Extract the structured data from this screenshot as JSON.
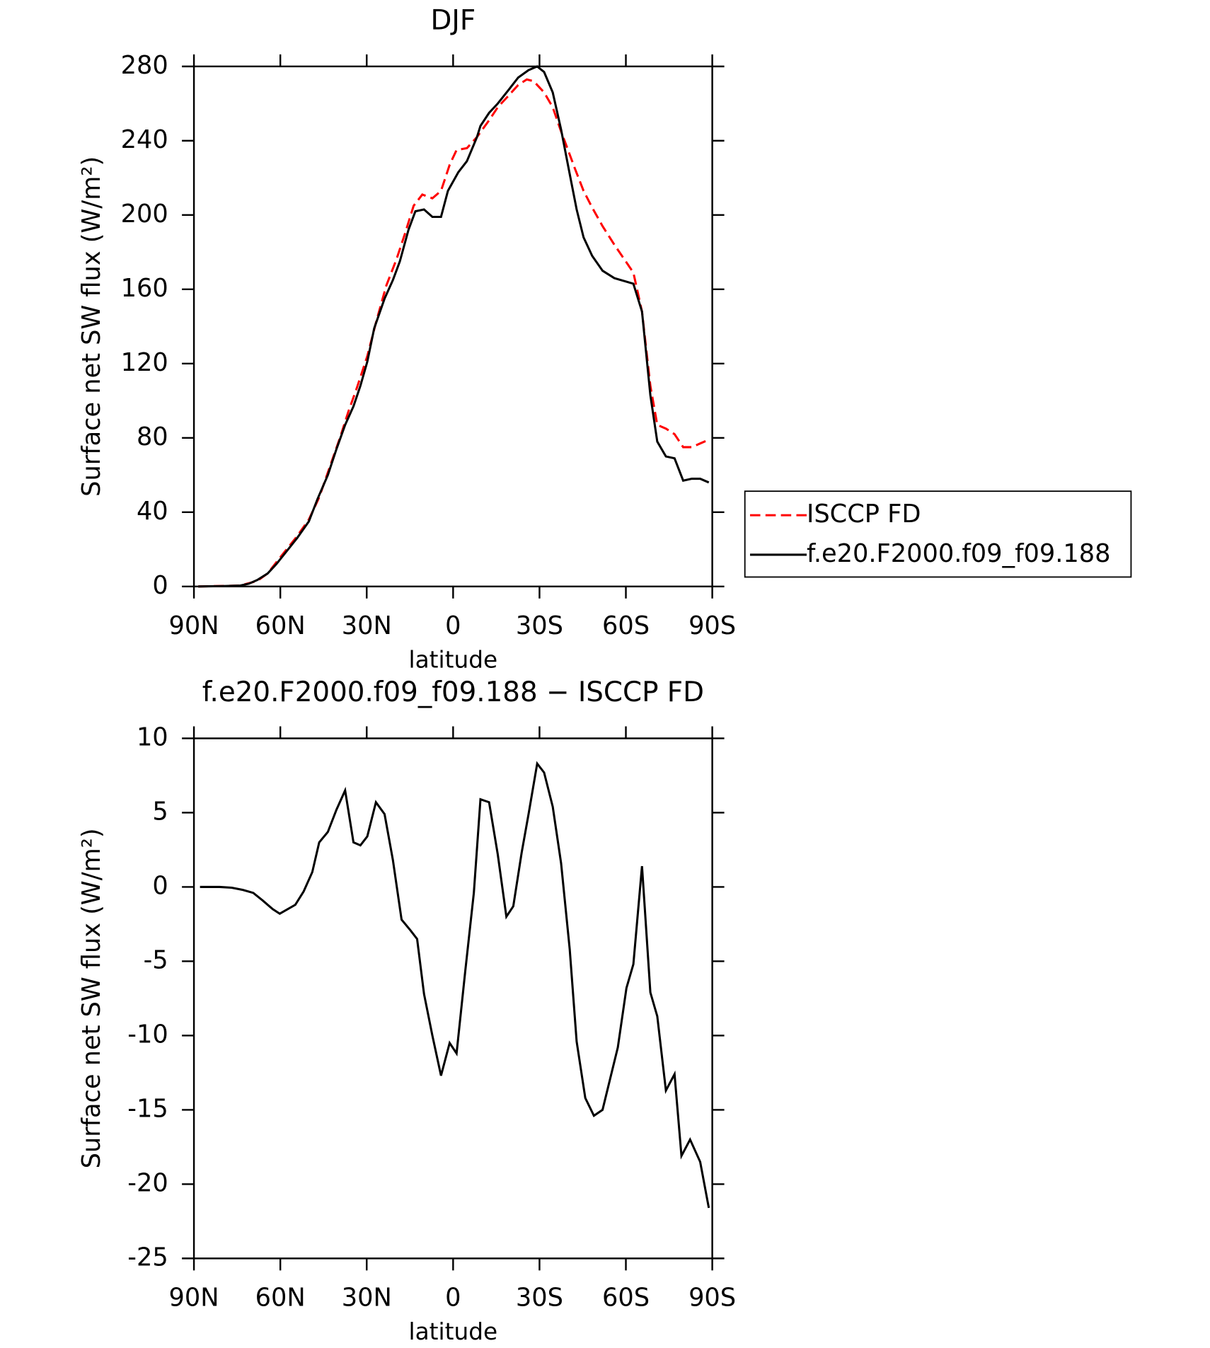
{
  "chart_data": [
    {
      "type": "line",
      "title": "DJF",
      "xlabel": "latitude",
      "ylabel": "Surface net SW flux (W/m²)",
      "xlim": [
        90,
        -90
      ],
      "xticks": [
        {
          "value": 90,
          "label": "90N"
        },
        {
          "value": 60,
          "label": "60N"
        },
        {
          "value": 30,
          "label": "30N"
        },
        0,
        {
          "value": -30,
          "label": "30S"
        },
        {
          "value": -60,
          "label": "60S"
        },
        {
          "value": -90,
          "label": "90S"
        }
      ],
      "ylim": [
        0,
        280
      ],
      "yticks": [
        0,
        40,
        80,
        120,
        160,
        200,
        240,
        280
      ],
      "legend": "right",
      "series": [
        {
          "name": "ISCCP FD",
          "color": "#ff0000",
          "linestyle": "dashed",
          "x": [
            88.5,
            73.9,
            68.0,
            64.4,
            61.4,
            57.8,
            54.2,
            50.1,
            46.5,
            42.9,
            39.3,
            36.4,
            33.4,
            29.8,
            26.8,
            23.2,
            19.7,
            16.7,
            13.7,
            10.7,
            7.2,
            4.2,
            1.2,
            -1.2,
            -4.8,
            -8.3,
            -12.5,
            -15.5,
            -19.1,
            -22.6,
            -25.6,
            -28.0,
            -31.6,
            -34.6,
            -37.5,
            -42.3,
            -45.3,
            -48.3,
            -51.9,
            -56.0,
            -62.6,
            -65.6,
            -68.5,
            -70.9,
            -73.9,
            -76.9,
            -79.9,
            -82.9,
            -85.8,
            -88.8
          ],
          "values": [
            0,
            0.5,
            3,
            7,
            13,
            20,
            27,
            36,
            48,
            64,
            80,
            94,
            107,
            124,
            142,
            162,
            176,
            190,
            205,
            211,
            209,
            213,
            227,
            235,
            236,
            242,
            251,
            258,
            264,
            270,
            273,
            272,
            266,
            258,
            245,
            225,
            213,
            204,
            194,
            184,
            169,
            148,
            108,
            87,
            85,
            82,
            75,
            75,
            77,
            79
          ]
        },
        {
          "name": "f.e20.F2000.f09_f09.188",
          "color": "#000000",
          "linestyle": "solid",
          "x": [
            88.5,
            79.9,
            73.9,
            70.9,
            68.0,
            64.4,
            61.4,
            57.8,
            54.2,
            50.1,
            47.1,
            43.5,
            40.5,
            37.5,
            34.6,
            32.2,
            29.8,
            27.4,
            23.8,
            20.9,
            18.5,
            15.5,
            13.1,
            10.1,
            7.2,
            4.2,
            1.8,
            -1.8,
            -4.8,
            -8.3,
            -9.5,
            -12.5,
            -15.5,
            -19.1,
            -22.6,
            -26.2,
            -29.2,
            -31.6,
            -34.6,
            -37.5,
            -40.5,
            -42.9,
            -45.3,
            -48.3,
            -51.9,
            -56.0,
            -62.6,
            -65.6,
            -68.5,
            -70.9,
            -73.9,
            -76.9,
            -79.9,
            -82.9,
            -85.8,
            -88.8
          ],
          "values": [
            0,
            0.2,
            0.5,
            1.5,
            3.5,
            7,
            12,
            19,
            26,
            35,
            47,
            60,
            74,
            87,
            97,
            108,
            121,
            139,
            155,
            165,
            175,
            192,
            202,
            203,
            199,
            199,
            213,
            223,
            229,
            242,
            248,
            255,
            260,
            267,
            274,
            278,
            280,
            277,
            266,
            246,
            222,
            203,
            188,
            178,
            170,
            166,
            163,
            148,
            103,
            78,
            70,
            69,
            57,
            58,
            58,
            56
          ]
        }
      ]
    },
    {
      "type": "line",
      "title": "f.e20.F2000.f09_f09.188 − ISCCP FD",
      "xlabel": "latitude",
      "ylabel": "Surface net SW flux (W/m²)",
      "xlim": [
        90,
        -90
      ],
      "xticks": [
        {
          "value": 90,
          "label": "90N"
        },
        {
          "value": 60,
          "label": "60N"
        },
        {
          "value": 30,
          "label": "30N"
        },
        0,
        {
          "value": -30,
          "label": "30S"
        },
        {
          "value": -60,
          "label": "60S"
        },
        {
          "value": -90,
          "label": "90S"
        }
      ],
      "ylim": [
        -25,
        10
      ],
      "yticks": [
        -25,
        -20,
        -15,
        -10,
        -5,
        0,
        5,
        10
      ],
      "series": [
        {
          "color": "#000000",
          "linestyle": "solid",
          "x": [
            87.9,
            81.1,
            76.9,
            73.0,
            69.4,
            66.2,
            62.6,
            60.2,
            57.5,
            54.8,
            51.9,
            48.9,
            46.5,
            43.5,
            40.5,
            37.5,
            34.6,
            32.2,
            29.8,
            26.8,
            23.8,
            20.9,
            17.9,
            14.9,
            12.5,
            10.1,
            7.2,
            4.2,
            1.2,
            -1.2,
            -4.2,
            -7.2,
            -9.5,
            -12.5,
            -15.5,
            -18.5,
            -20.9,
            -23.8,
            -26.2,
            -29.2,
            -31.6,
            -34.6,
            -37.5,
            -40.5,
            -42.9,
            -45.9,
            -48.9,
            -51.9,
            -54.8,
            -57.2,
            -60.2,
            -62.6,
            -65.6,
            -68.5,
            -70.9,
            -73.9,
            -76.9,
            -79.3,
            -82.3,
            -85.8,
            -88.8
          ],
          "values": [
            0,
            0,
            -0.05,
            -0.2,
            -0.4,
            -0.9,
            -1.5,
            -1.8,
            -1.5,
            -1.2,
            -0.3,
            1,
            3,
            3.7,
            5.2,
            6.5,
            3,
            2.8,
            3.4,
            5.7,
            4.9,
            1.8,
            -2.2,
            -2.9,
            -3.5,
            -7.2,
            -10,
            -12.7,
            -10.5,
            -11.2,
            -5.7,
            -0.4,
            5.9,
            5.7,
            2.2,
            -2,
            -1.3,
            2.3,
            4.9,
            8.3,
            7.7,
            5.4,
            1.6,
            -4.2,
            -10.4,
            -14.2,
            -15.4,
            -15,
            -12.7,
            -10.8,
            -6.8,
            -5.2,
            1.4,
            -7.1,
            -8.7,
            -13.7,
            -12.6,
            -18.1,
            -17,
            -18.5,
            -21.6
          ]
        }
      ]
    }
  ]
}
